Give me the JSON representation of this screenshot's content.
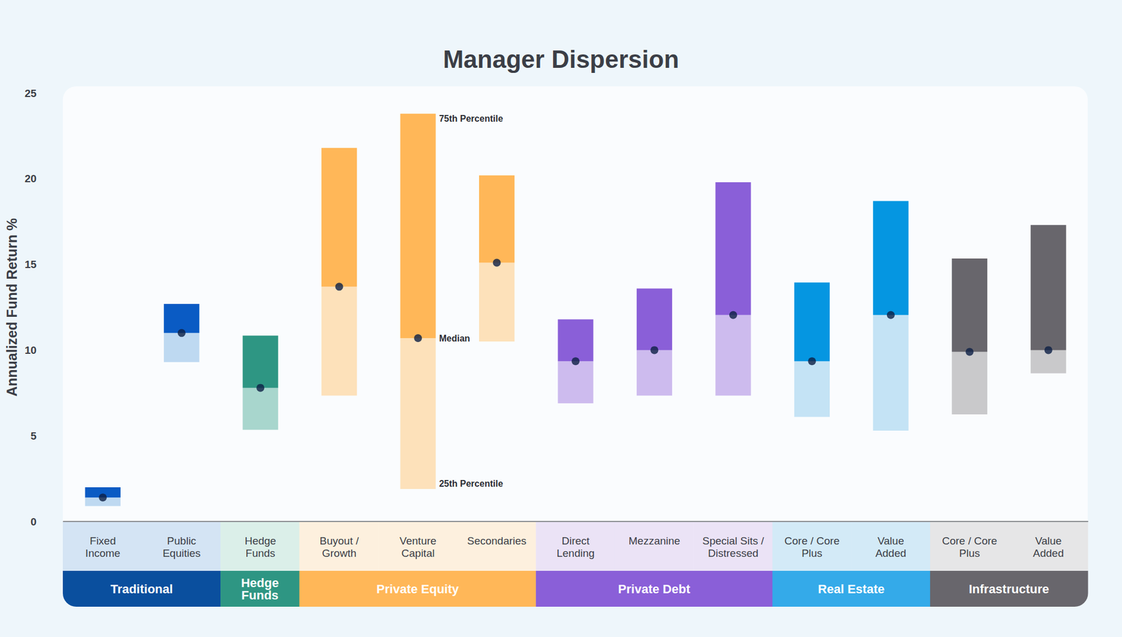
{
  "chart_data": {
    "type": "bar",
    "title": "Manager Dispersion",
    "y_label": "Annualized Fund Return %",
    "categories": [
      "Fixed Income",
      "Public Equities",
      "Hedge Funds",
      "Buyout / Growth",
      "Venture Capital",
      "Secondaries",
      "Direct Lending",
      "Mezzanine",
      "Special Sits / Distressed",
      "Core / Core Plus",
      "Value Added",
      "Core / Core Plus",
      "Value Added"
    ],
    "series": [
      {
        "name": "25th Percentile",
        "values": [
          0.9,
          9.3,
          5.35,
          7.35,
          1.9,
          10.5,
          6.9,
          7.35,
          7.35,
          6.1,
          5.3,
          6.25,
          8.65
        ],
        "colors": [
          "#bed9f1",
          "#bed9f1",
          "#a8d6cd",
          "#fde1ba",
          "#fde1ba",
          "#fde1ba",
          "#cdbbee",
          "#cdbbee",
          "#cdbbee",
          "#c4e3f5",
          "#c4e3f5",
          "#c9c9cb",
          "#c9c9cb"
        ]
      },
      {
        "name": "Median",
        "values": [
          1.4,
          11.0,
          7.8,
          13.7,
          10.7,
          15.1,
          9.35,
          10.0,
          12.05,
          9.35,
          12.05,
          9.9,
          10.0
        ],
        "color": "#0c1f45"
      },
      {
        "name": "75th Percentile",
        "values": [
          2.0,
          12.7,
          10.85,
          21.8,
          23.8,
          20.2,
          11.8,
          13.6,
          19.8,
          13.95,
          18.7,
          15.35,
          17.3
        ],
        "colors": [
          "#0a5bc4",
          "#0a5bc4",
          "#2e9683",
          "#ffb758",
          "#ffb758",
          "#ffb758",
          "#8a5fd8",
          "#8a5fd8",
          "#8a5fd8",
          "#0596e1",
          "#0596e1",
          "#68666c",
          "#68666c"
        ]
      }
    ],
    "groups": [
      {
        "name": "Traditional",
        "size": 2,
        "color": "#0a4f9e"
      },
      {
        "name": "Hedge Funds",
        "size": 1,
        "color": "#2e9683"
      },
      {
        "name": "Private Equity",
        "size": 3,
        "color": "#ffb758"
      },
      {
        "name": "Private Debt",
        "size": 3,
        "color": "#8a5fd8"
      },
      {
        "name": "Real Estate",
        "size": 2,
        "color": "#34aae9"
      },
      {
        "name": "Infrastructure",
        "size": 2,
        "color": "#68666c"
      }
    ],
    "annotations": {
      "category": "Venture Capital"
    },
    "ylim": [
      0,
      25
    ],
    "yticks": [
      0,
      5,
      10,
      15,
      20,
      25
    ],
    "grid": false
  }
}
